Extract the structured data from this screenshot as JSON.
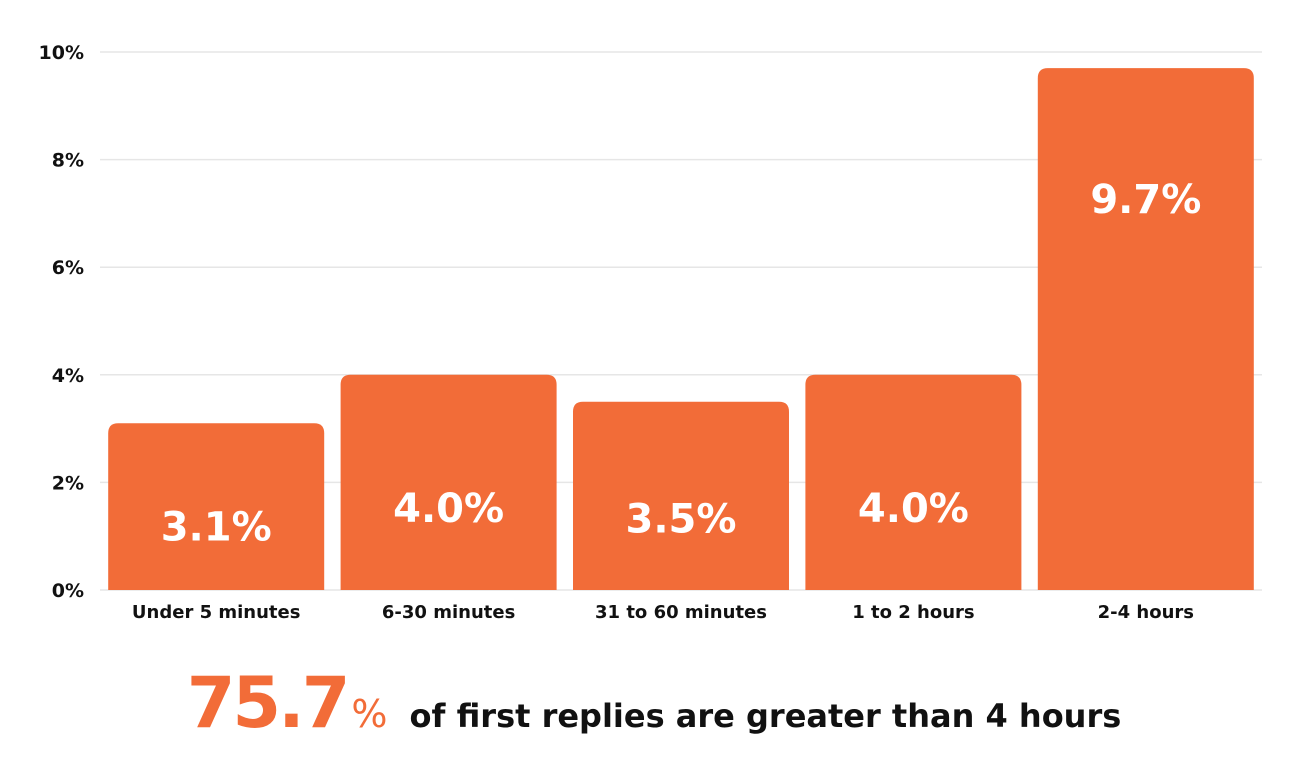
{
  "chart_data": {
    "type": "bar",
    "categories": [
      "Under 5 minutes",
      "6-30 minutes",
      "31 to 60 minutes",
      "1 to 2 hours",
      "2-4 hours"
    ],
    "values": [
      3.1,
      4.0,
      3.5,
      4.0,
      9.7
    ],
    "data_labels": [
      "3.1%",
      "4.0%",
      "3.5%",
      "4.0%",
      "9.7%"
    ],
    "y_ticks": [
      "0%",
      "2%",
      "4%",
      "6%",
      "8%",
      "10%"
    ],
    "ylim": [
      0,
      10
    ],
    "grid": true,
    "legend": "none",
    "bar_color": "#F26C38",
    "title": "",
    "xlabel": "",
    "ylabel": ""
  },
  "footer": {
    "number": "75.7",
    "percent_sign": "%",
    "text": "of first replies are greater than 4 hours",
    "accent_color": "#F26C38"
  }
}
